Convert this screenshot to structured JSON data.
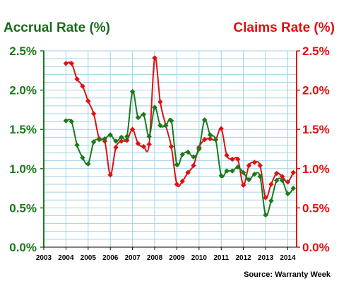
{
  "chart_data": {
    "type": "line",
    "title_left": "Accrual Rate (%)",
    "title_right": "Claims Rate (%)",
    "source": "Source: Warranty Week",
    "x_ticks": [
      "2003",
      "2004",
      "2005",
      "2006",
      "2007",
      "2008",
      "2009",
      "2010",
      "2011",
      "2012",
      "2013",
      "2014"
    ],
    "xlim": [
      2003,
      2014.4
    ],
    "y_left_ticks": [
      "0.0%",
      "0.5%",
      "1.0%",
      "1.5%",
      "2.0%",
      "2.5%"
    ],
    "y_right_ticks": [
      "0.0%",
      "0.5%",
      "1.0%",
      "1.5%",
      "2.0%",
      "2.5%"
    ],
    "ylim": [
      0,
      2.5
    ],
    "grid": true,
    "colors": {
      "accrual": "#1a7a1a",
      "claims": "#e01010",
      "title_left": "#1a6b1a",
      "title_right": "#e01010",
      "grid": "#9fd3e8",
      "axis_left": "#1a7a1a",
      "axis_right": "#e01010"
    },
    "series": [
      {
        "name": "Accrual Rate (%)",
        "axis": "left",
        "x": [
          2004.0,
          2004.25,
          2004.5,
          2004.75,
          2005.0,
          2005.25,
          2005.5,
          2005.75,
          2006.0,
          2006.25,
          2006.5,
          2006.75,
          2007.0,
          2007.25,
          2007.5,
          2007.75,
          2008.0,
          2008.25,
          2008.5,
          2008.75,
          2009.0,
          2009.25,
          2009.5,
          2009.75,
          2010.0,
          2010.25,
          2010.5,
          2010.75,
          2011.0,
          2011.25,
          2011.5,
          2011.75,
          2012.0,
          2012.25,
          2012.5,
          2012.75,
          2013.0,
          2013.25,
          2013.5,
          2013.75,
          2014.0,
          2014.25
        ],
        "values": [
          1.61,
          1.6,
          1.3,
          1.14,
          1.06,
          1.34,
          1.37,
          1.38,
          1.43,
          1.35,
          1.4,
          1.41,
          1.98,
          1.65,
          1.69,
          1.41,
          1.78,
          1.55,
          1.55,
          1.61,
          1.05,
          1.18,
          1.21,
          1.15,
          1.25,
          1.62,
          1.43,
          1.37,
          0.91,
          0.97,
          0.97,
          1.02,
          0.95,
          0.86,
          0.93,
          0.9,
          0.41,
          0.59,
          0.85,
          0.85,
          0.68,
          0.75
        ]
      },
      {
        "name": "Claims Rate (%)",
        "axis": "right",
        "x": [
          2004.0,
          2004.25,
          2004.5,
          2004.75,
          2005.0,
          2005.25,
          2005.5,
          2005.75,
          2006.0,
          2006.25,
          2006.5,
          2006.75,
          2007.0,
          2007.25,
          2007.5,
          2007.75,
          2008.0,
          2008.25,
          2008.5,
          2008.75,
          2009.0,
          2009.25,
          2009.5,
          2009.75,
          2010.0,
          2010.25,
          2010.5,
          2010.75,
          2011.0,
          2011.25,
          2011.5,
          2011.75,
          2012.0,
          2012.25,
          2012.5,
          2012.75,
          2013.0,
          2013.25,
          2013.5,
          2013.75,
          2014.0,
          2014.25
        ],
        "values": [
          2.34,
          2.34,
          2.14,
          2.05,
          1.86,
          1.7,
          1.38,
          1.35,
          0.92,
          1.27,
          1.35,
          1.36,
          1.5,
          1.32,
          1.28,
          1.31,
          2.41,
          1.85,
          1.55,
          1.28,
          0.8,
          0.84,
          0.95,
          1.04,
          1.27,
          1.37,
          1.38,
          1.37,
          1.51,
          1.17,
          1.12,
          1.12,
          0.79,
          1.04,
          1.08,
          1.04,
          0.63,
          0.8,
          0.94,
          0.9,
          0.83,
          0.95
        ]
      }
    ]
  }
}
